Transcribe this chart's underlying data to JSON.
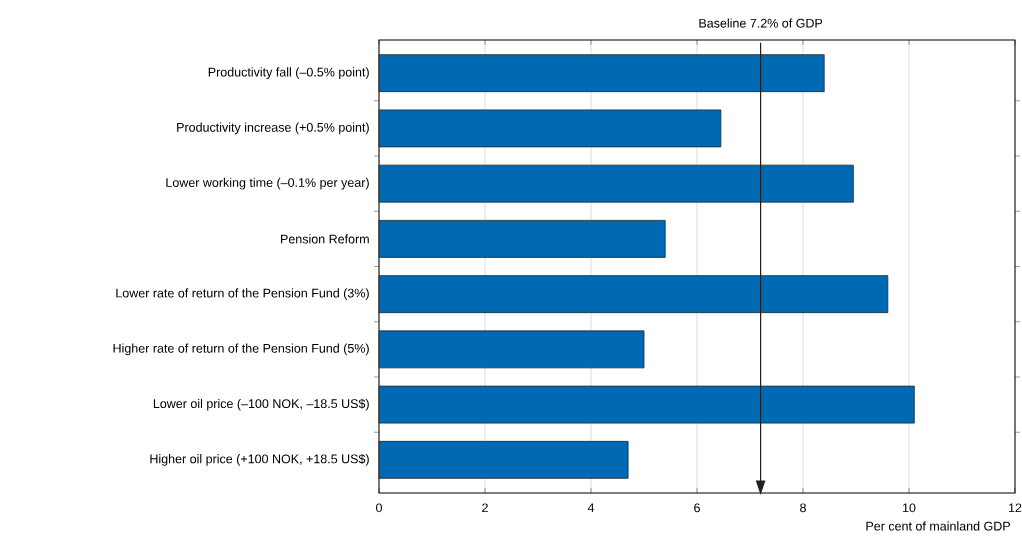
{
  "chart_data": {
    "type": "bar",
    "orientation": "horizontal",
    "xlabel": "Per cent of mainland GDP",
    "categories": [
      "Productivity fall (–0.5% point)",
      "Productivity increase (+0.5% point)",
      "Lower working time (–0.1% per year)",
      "Pension Reform",
      "Lower rate of return of the Pension Fund (3%)",
      "Higher rate of return of the Pension Fund (5%)",
      "Lower oil price (–100 NOK, –18.5 US$)",
      "Higher oil price (+100 NOK, +18.5 US$)"
    ],
    "values": [
      8.4,
      6.45,
      8.95,
      5.4,
      9.6,
      5.0,
      10.1,
      4.7
    ],
    "color": "#0069b4",
    "xlim": [
      0,
      12
    ],
    "xticks": [
      0,
      2,
      4,
      6,
      8,
      10,
      12
    ],
    "grid": "x",
    "ref_lines": [
      {
        "axis": "x",
        "value": 7.2,
        "label": "Baseline 7.2% of GDP",
        "color": "#231f20"
      }
    ]
  }
}
